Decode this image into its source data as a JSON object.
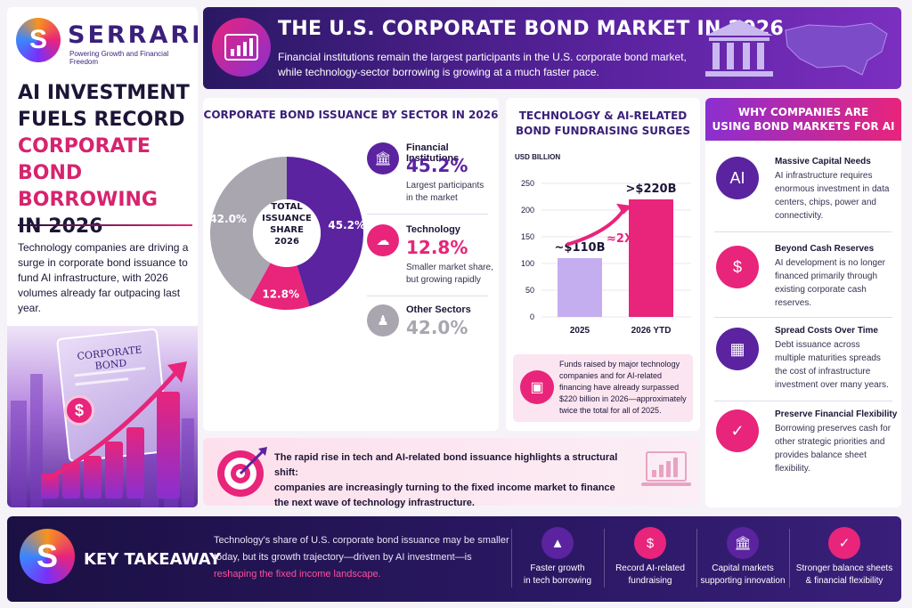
{
  "brand": {
    "name": "SERRARI",
    "tagline": "Powering Growth and Financial Freedom",
    "mark": "S"
  },
  "headline": {
    "line1": "AI Investment",
    "line2": "Fuels Record",
    "line3": "Corporate",
    "line4": "Bond Borrowing",
    "line5": "in 2026"
  },
  "intro": "Technology companies are driving a surge in corporate bond issuance to fund AI infrastructure, with 2026 volumes already far outpacing last year.",
  "illustration": {
    "doc_title": "CORPORATE BOND",
    "coin": "$"
  },
  "header": {
    "title": "THE U.S. CORPORATE BOND MARKET IN 2026",
    "subtitle": "Financial institutions remain the largest participants in the U.S. corporate bond market, while technology-sector borrowing is growing at a much faster pace."
  },
  "sector": {
    "title": "CORPORATE BOND ISSUANCE BY SECTOR IN 2026",
    "center_label": [
      "TOTAL",
      "ISSUANCE",
      "SHARE",
      "2026"
    ],
    "slices": [
      {
        "name": "Financial Institutions",
        "value": 45.2,
        "label": "45.2%",
        "color": "#5b23a0",
        "desc1": "Largest participants",
        "desc2": "in the market",
        "icon": "bank-icon"
      },
      {
        "name": "Technology",
        "value": 12.8,
        "label": "12.8%",
        "color": "#e8247b",
        "desc1": "Smaller market share,",
        "desc2": "but growing rapidly",
        "icon": "cloud-chip-icon"
      },
      {
        "name": "Other Sectors",
        "value": 42.0,
        "label": "42.0%",
        "color": "#a9a6b0",
        "icon": "people-icon"
      }
    ]
  },
  "tech": {
    "title1": "TECHNOLOGY & AI-RELATED",
    "title2": "BOND FUNDRAISING SURGES",
    "unit": "USD BILLION",
    "y_ticks": [
      "250",
      "200",
      "150",
      "100",
      "50",
      "0"
    ],
    "categories": [
      "2025",
      "2026 YTD"
    ],
    "bar_labels": [
      "~$110B",
      ">$220B"
    ],
    "multiplier": "≈2X",
    "note": "Funds raised by major technology companies and for AI-related financing have already surpassed $220 billion in 2026—approximately twice the total for all of 2025."
  },
  "chart_data": {
    "type": "bar",
    "categories": [
      "2025",
      "2026 YTD"
    ],
    "values": [
      110,
      220
    ],
    "ylabel": "USD BILLION",
    "ylim": [
      0,
      250
    ]
  },
  "why": {
    "title1": "WHY COMPANIES ARE",
    "title2": "USING BOND MARKETS FOR AI",
    "items": [
      {
        "title": "Massive Capital Needs",
        "desc": "AI infrastructure requires enormous investment in data centers, chips, power and connectivity.",
        "icon": "ai-chip-icon"
      },
      {
        "title": "Beyond Cash Reserves",
        "desc": "AI development is no longer financed primarily through existing corporate cash reserves.",
        "icon": "dollar-growth-icon"
      },
      {
        "title": "Spread Costs Over Time",
        "desc": "Debt issuance across multiple maturities spreads the cost of infrastructure investment over many years.",
        "icon": "calendar-icon"
      },
      {
        "title": "Preserve Financial Flexibility",
        "desc": "Borrowing preserves cash for other strategic priorities and provides balance sheet flexibility.",
        "icon": "shield-check-icon"
      }
    ]
  },
  "insight": {
    "line1": "The rapid rise in tech and AI-related bond issuance highlights a structural shift:",
    "line2": "companies are increasingly turning to the fixed income market to finance",
    "line3": "the next wave of technology infrastructure."
  },
  "takeaway": {
    "title": "KEY TAKEAWAY",
    "text_a": "Technology's share of U.S. corporate bond issuance may be smaller today, but its growth trajectory—driven by AI investment—is ",
    "text_b": "reshaping the fixed income landscape.",
    "items": [
      {
        "l1": "Faster growth",
        "l2": "in tech borrowing",
        "icon": "bar-growth-icon"
      },
      {
        "l1": "Record AI-related",
        "l2": "fundraising",
        "icon": "money-doc-icon"
      },
      {
        "l1": "Capital markets",
        "l2": "supporting innovation",
        "icon": "bank-icon"
      },
      {
        "l1": "Stronger balance sheets",
        "l2": "& financial flexibility",
        "icon": "shield-check-icon"
      }
    ]
  }
}
